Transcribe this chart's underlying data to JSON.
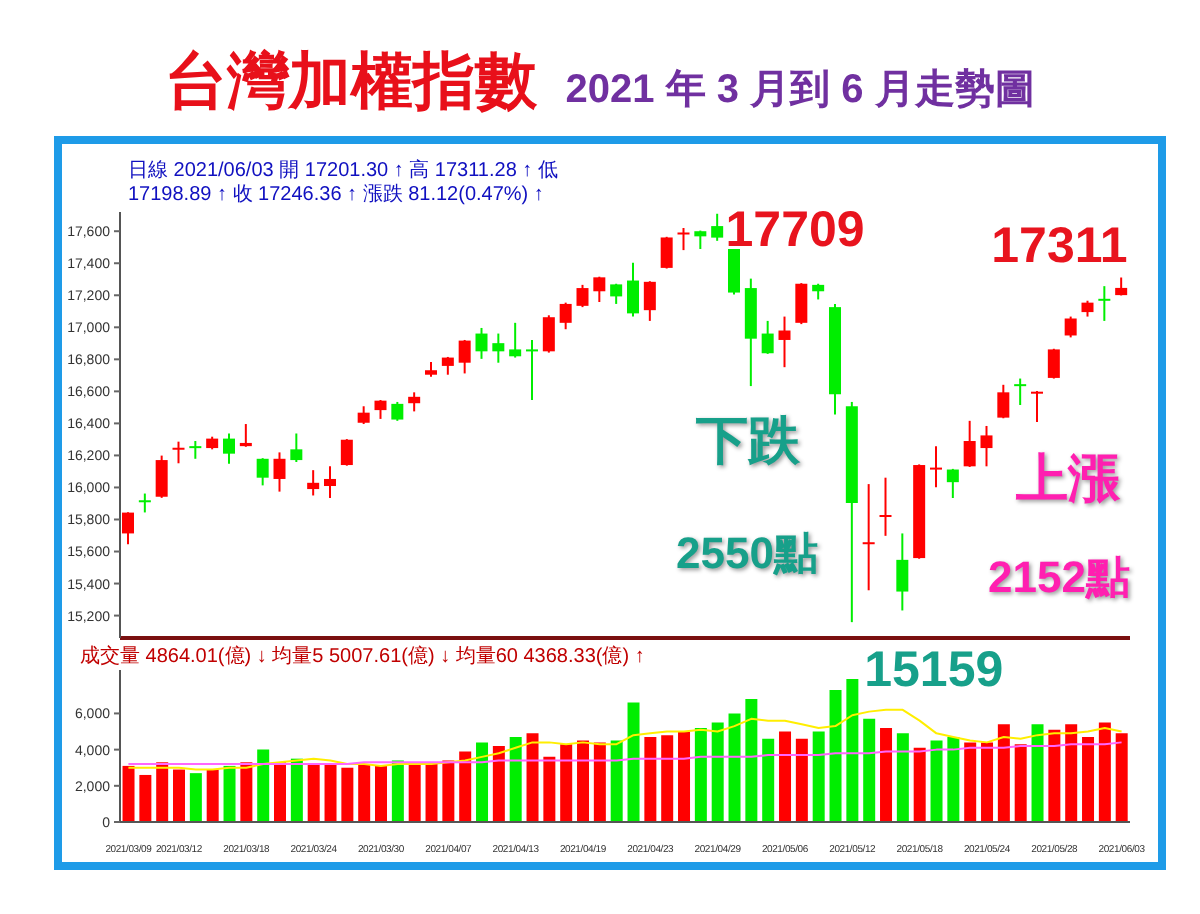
{
  "chart_data": [
    {
      "type": "candlestick",
      "title": "台灣加權指數",
      "subtitle": "2021 年 3 月到 6 月走勢圖",
      "categories": [
        "2021/03/09",
        null,
        null,
        "2021/03/12",
        null,
        null,
        null,
        "2021/03/18",
        null,
        null,
        null,
        "2021/03/24",
        null,
        null,
        null,
        "2021/03/30",
        null,
        null,
        null,
        "2021/04/07",
        null,
        null,
        null,
        "2021/04/13",
        null,
        null,
        null,
        "2021/04/19",
        null,
        null,
        null,
        "2021/04/23",
        null,
        null,
        null,
        "2021/04/29",
        null,
        null,
        null,
        "2021/05/06",
        null,
        null,
        null,
        "2021/05/12",
        null,
        null,
        null,
        "2021/05/18",
        null,
        null,
        null,
        "2021/05/24",
        null,
        null,
        null,
        "2021/05/28",
        null,
        null,
        null,
        "2021/06/03"
      ],
      "ohlc": [
        [
          15713,
          15845,
          15646,
          15843
        ],
        [
          15920,
          15962,
          15844,
          15912
        ],
        [
          15942,
          16199,
          15935,
          16171
        ],
        [
          16240,
          16286,
          16151,
          16248
        ],
        [
          16258,
          16290,
          16179,
          16252
        ],
        [
          16246,
          16317,
          16238,
          16305
        ],
        [
          16305,
          16337,
          16148,
          16211
        ],
        [
          16258,
          16396,
          16254,
          16278
        ],
        [
          16179,
          16183,
          16013,
          16061
        ],
        [
          16053,
          16219,
          15974,
          16179
        ],
        [
          16238,
          16337,
          16159,
          16171
        ],
        [
          15990,
          16108,
          15950,
          16029
        ],
        [
          16009,
          16132,
          15934,
          16053
        ],
        [
          16140,
          16302,
          16136,
          16298
        ],
        [
          16404,
          16507,
          16396,
          16467
        ],
        [
          16483,
          16546,
          16428,
          16542
        ],
        [
          16522,
          16534,
          16416,
          16424
        ],
        [
          16526,
          16594,
          16475,
          16566
        ],
        [
          16704,
          16783,
          16692,
          16732
        ],
        [
          16759,
          16815,
          16704,
          16811
        ],
        [
          16779,
          16921,
          16712,
          16917
        ],
        [
          16961,
          16996,
          16803,
          16850
        ],
        [
          16901,
          16961,
          16779,
          16850
        ],
        [
          16862,
          17028,
          16811,
          16819
        ],
        [
          16862,
          16921,
          16546,
          16854
        ],
        [
          16850,
          17075,
          16842,
          17063
        ],
        [
          17028,
          17154,
          16988,
          17146
        ],
        [
          17134,
          17265,
          17126,
          17245
        ],
        [
          17225,
          17316,
          17158,
          17312
        ],
        [
          17268,
          17272,
          17146,
          17193
        ],
        [
          17292,
          17403,
          17067,
          17087
        ],
        [
          17107,
          17288,
          17040,
          17284
        ],
        [
          17371,
          17565,
          17367,
          17561
        ],
        [
          17584,
          17620,
          17482,
          17592
        ],
        [
          17600,
          17604,
          17489,
          17568
        ],
        [
          17632,
          17709,
          17540,
          17560
        ],
        [
          17501,
          17521,
          17205,
          17217
        ],
        [
          17245,
          17304,
          16633,
          16929
        ],
        [
          16961,
          17040,
          16834,
          16838
        ],
        [
          16921,
          17067,
          16751,
          16980
        ],
        [
          17028,
          17276,
          17020,
          17272
        ],
        [
          17265,
          17272,
          17174,
          17225
        ],
        [
          17126,
          17146,
          16455,
          16582
        ],
        [
          16507,
          16534,
          15159,
          15903
        ],
        [
          15650,
          16021,
          15358,
          15658
        ],
        [
          15820,
          16061,
          15698,
          15828
        ],
        [
          15548,
          15713,
          15232,
          15350
        ],
        [
          15559,
          16144,
          15555,
          16140
        ],
        [
          16116,
          16258,
          16001,
          16124
        ],
        [
          16112,
          16116,
          15934,
          16033
        ],
        [
          16132,
          16416,
          16128,
          16290
        ],
        [
          16246,
          16384,
          16132,
          16325
        ],
        [
          16436,
          16641,
          16432,
          16594
        ],
        [
          16645,
          16680,
          16515,
          16637
        ],
        [
          16590,
          16602,
          16408,
          16598
        ],
        [
          16684,
          16866,
          16680,
          16862
        ],
        [
          16949,
          17067,
          16937,
          17055
        ],
        [
          17095,
          17166,
          17067,
          17154
        ],
        [
          17178,
          17257,
          17040,
          17170
        ],
        [
          17201,
          17311,
          17199,
          17246
        ]
      ],
      "colors": [
        "#ff0000",
        "#00ee00",
        "#ff0000",
        "#ff0000",
        "#00ee00",
        "#ff0000",
        "#00ee00",
        "#ff0000",
        "#00ee00",
        "#ff0000",
        "#00ee00",
        "#ff0000",
        "#ff0000",
        "#ff0000",
        "#ff0000",
        "#ff0000",
        "#00ee00",
        "#ff0000",
        "#ff0000",
        "#ff0000",
        "#ff0000",
        "#00ee00",
        "#00ee00",
        "#00ee00",
        "#00ee00",
        "#ff0000",
        "#ff0000",
        "#ff0000",
        "#ff0000",
        "#00ee00",
        "#00ee00",
        "#ff0000",
        "#ff0000",
        "#ff0000",
        "#00ee00",
        "#00ee00",
        "#00ee00",
        "#00ee00",
        "#00ee00",
        "#ff0000",
        "#ff0000",
        "#00ee00",
        "#00ee00",
        "#00ee00",
        "#ff0000",
        "#ff0000",
        "#00ee00",
        "#ff0000",
        "#ff0000",
        "#00ee00",
        "#ff0000",
        "#ff0000",
        "#ff0000",
        "#00ee00",
        "#ff0000",
        "#ff0000",
        "#ff0000",
        "#ff0000",
        "#00ee00",
        "#ff0000"
      ],
      "ylim": [
        15060,
        17720
      ],
      "yticks": [
        {
          "value": 15200,
          "label": "15,200"
        },
        {
          "value": 15400,
          "label": "15,400"
        },
        {
          "value": 15600,
          "label": "15,600"
        },
        {
          "value": 15800,
          "label": "15,800"
        },
        {
          "value": 16000,
          "label": "16,000"
        },
        {
          "value": 16200,
          "label": "16,200"
        },
        {
          "value": 16400,
          "label": "16,400"
        },
        {
          "value": 16600,
          "label": "16,600"
        },
        {
          "value": 16800,
          "label": "16,800"
        },
        {
          "value": 17000,
          "label": "17,000"
        },
        {
          "value": 17200,
          "label": "17,200"
        },
        {
          "value": 17400,
          "label": "17,400"
        },
        {
          "value": 17600,
          "label": "17,600"
        }
      ],
      "tick_labels": "y",
      "annotations": [
        "日線 2021/06/03 開 17201.30 ↑ 高 17311.28 ↑ 低 17198.89 ↑ 收 17246.36 ↑ 漲跌 81.12(0.47%) ↑",
        {
          "text": "17709",
          "x": "2021/04/29",
          "y": 17709
        },
        "下跌",
        "2550點",
        {
          "text": "15159",
          "x": "2021/05/12",
          "y": 15159
        },
        "上漲",
        "2152點",
        {
          "text": "17311",
          "x": "2021/06/03",
          "y": 17311
        }
      ]
    },
    {
      "type": "bar",
      "categories": [
        "2021/03/09",
        null,
        null,
        "2021/03/12",
        null,
        null,
        null,
        "2021/03/18",
        null,
        null,
        null,
        "2021/03/24",
        null,
        null,
        null,
        "2021/03/30",
        null,
        null,
        null,
        "2021/04/07",
        null,
        null,
        null,
        "2021/04/13",
        null,
        null,
        null,
        "2021/04/19",
        null,
        null,
        null,
        "2021/04/23",
        null,
        null,
        null,
        "2021/04/29",
        null,
        null,
        null,
        "2021/05/06",
        null,
        null,
        null,
        "2021/05/12",
        null,
        null,
        null,
        "2021/05/18",
        null,
        null,
        null,
        "2021/05/24",
        null,
        null,
        null,
        "2021/05/28",
        null,
        null,
        null,
        "2021/06/03"
      ],
      "series": [
        {
          "type": "bar",
          "values": [
            3100,
            2600,
            3300,
            2900,
            2700,
            2900,
            3100,
            3300,
            4000,
            3300,
            3500,
            3200,
            3200,
            3000,
            3200,
            3100,
            3400,
            3200,
            3300,
            3400,
            3900,
            4400,
            4200,
            4700,
            4900,
            3600,
            4300,
            4500,
            4400,
            4500,
            6600,
            4700,
            4800,
            5000,
            5200,
            5500,
            6000,
            6800,
            4600,
            5000,
            4600,
            5000,
            7300,
            7900,
            5700,
            5200,
            4900,
            4100,
            4500,
            4700,
            4400,
            4400,
            5400,
            4300,
            5400,
            5100,
            5400,
            4700,
            5500,
            4900
          ],
          "colors": [
            "#ff0000",
            "#ff0000",
            "#ff0000",
            "#ff0000",
            "#00ee00",
            "#ff0000",
            "#00ee00",
            "#ff0000",
            "#00ee00",
            "#ff0000",
            "#00ee00",
            "#ff0000",
            "#ff0000",
            "#ff0000",
            "#ff0000",
            "#ff0000",
            "#00ee00",
            "#ff0000",
            "#ff0000",
            "#ff0000",
            "#ff0000",
            "#00ee00",
            "#ff0000",
            "#00ee00",
            "#ff0000",
            "#ff0000",
            "#ff0000",
            "#ff0000",
            "#ff0000",
            "#00ee00",
            "#00ee00",
            "#ff0000",
            "#ff0000",
            "#ff0000",
            "#00ee00",
            "#00ee00",
            "#00ee00",
            "#00ee00",
            "#00ee00",
            "#ff0000",
            "#ff0000",
            "#00ee00",
            "#00ee00",
            "#00ee00",
            "#00ee00",
            "#ff0000",
            "#00ee00",
            "#ff0000",
            "#00ee00",
            "#00ee00",
            "#ff0000",
            "#ff0000",
            "#ff0000",
            "#ff0000",
            "#00ee00",
            "#ff0000",
            "#ff0000",
            "#ff0000",
            "#ff0000",
            "#ff0000"
          ]
        },
        {
          "type": "line",
          "color": "#ffee00",
          "values": [
            3000,
            3000,
            3000,
            3000,
            2900,
            2900,
            3000,
            3000,
            3200,
            3300,
            3400,
            3500,
            3400,
            3200,
            3200,
            3100,
            3200,
            3200,
            3200,
            3300,
            3400,
            3600,
            3800,
            4100,
            4400,
            4400,
            4300,
            4400,
            4300,
            4300,
            4800,
            4900,
            5000,
            5000,
            5100,
            5000,
            5300,
            5700,
            5600,
            5600,
            5400,
            5200,
            5300,
            5900,
            6100,
            6200,
            6200,
            5600,
            4900,
            4700,
            4500,
            4400,
            4700,
            4600,
            4800,
            4900,
            4900,
            5000,
            5200,
            5000
          ]
        },
        {
          "type": "line",
          "color": "#ff66ff",
          "values": [
            3200,
            3200,
            3200,
            3200,
            3200,
            3200,
            3200,
            3200,
            3200,
            3200,
            3200,
            3200,
            3200,
            3200,
            3300,
            3300,
            3300,
            3300,
            3300,
            3300,
            3300,
            3300,
            3400,
            3400,
            3400,
            3400,
            3400,
            3400,
            3400,
            3400,
            3500,
            3500,
            3500,
            3500,
            3600,
            3600,
            3600,
            3600,
            3700,
            3700,
            3700,
            3700,
            3800,
            3800,
            3800,
            3900,
            3900,
            3900,
            4000,
            4000,
            4100,
            4100,
            4100,
            4200,
            4200,
            4200,
            4300,
            4300,
            4300,
            4400
          ]
        }
      ],
      "ylim": [
        0,
        8400
      ],
      "yticks": [
        0,
        {
          "value": 2000,
          "label": "2,000"
        },
        {
          "value": 4000,
          "label": "4,000"
        },
        {
          "value": 6000,
          "label": "6,000"
        }
      ],
      "marker": "none",
      "annotations": [
        "成交量 4864.01(億) ↓ 均量5 5007.61(億) ↓ 均量60 4368.33(億) ↑"
      ]
    }
  ]
}
